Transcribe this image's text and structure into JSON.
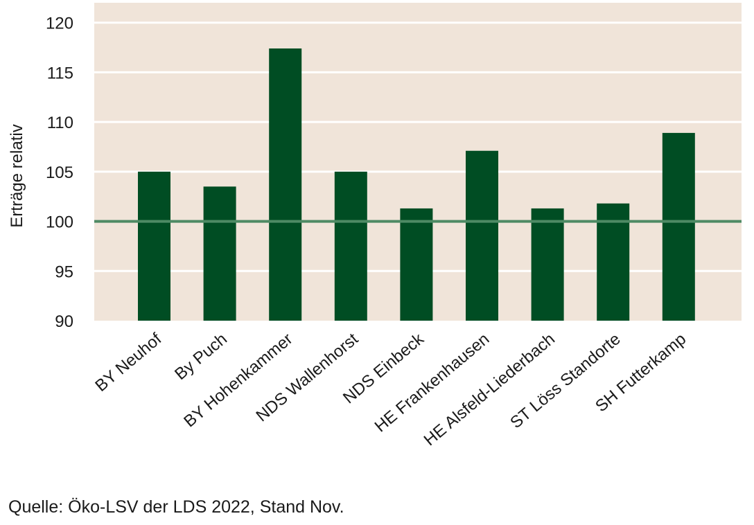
{
  "chart_data": {
    "type": "bar",
    "title": "",
    "xlabel": "",
    "ylabel": "Erträge relativ",
    "ylim": [
      90,
      122
    ],
    "yticks": [
      90,
      95,
      100,
      105,
      110,
      115,
      120
    ],
    "reference_line": 100,
    "grid": true,
    "categories": [
      "BY Neuhof",
      "By Puch",
      "BY Hohenkammer",
      "NDS Wallenhorst",
      "NDS Einbeck",
      "HE Frankenhausen",
      "HE Alsfeld-Liederbach",
      "ST Löss Standorte",
      "SH Futterkamp"
    ],
    "values": [
      105.0,
      103.5,
      117.4,
      105.0,
      101.3,
      107.1,
      101.3,
      101.8,
      108.9
    ],
    "colors": {
      "bar": "#004d23",
      "plot_background": "#f0e4d9",
      "grid": "#ffffff",
      "reference_line": "#4e8a64"
    }
  },
  "footer": {
    "source": "Quelle: Öko-LSV der LDS 2022, Stand Nov."
  }
}
